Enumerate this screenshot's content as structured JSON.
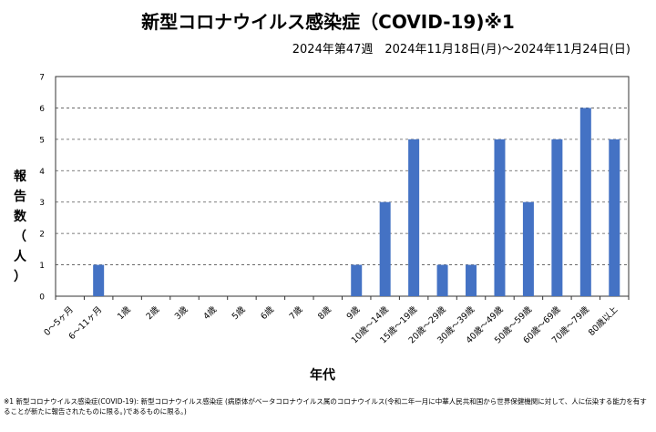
{
  "title": "新型コロナウイルス感染症（COVID-19)※1",
  "subtitle": "2024年第47週　2024年11月18日(月)～2024年11月24日(日)",
  "footnote": "※1 新型コロナウイルス感染症(COVID-19): 新型コロナウイルス感染症 (病原体がベータコロナウイルス属のコロナウイルス(令和二年一月に中華人民共和国から世界保健機関に対して、人に伝染する能力を有することが新たに報告されたものに限る。)であるものに限る。)",
  "chart_data": {
    "type": "bar",
    "title": "新型コロナウイルス感染症（COVID-19)※1",
    "xlabel": "年代",
    "ylabel": "報告数（人）",
    "ylim": [
      0,
      7
    ],
    "yticks": [
      "0",
      "1",
      "2",
      "3",
      "4",
      "5",
      "6",
      "7"
    ],
    "grid": true,
    "bar_color": "#4472C4",
    "categories": [
      "0～5ヶ月",
      "6～11ヶ月",
      "1歳",
      "2歳",
      "3歳",
      "4歳",
      "5歳",
      "6歳",
      "7歳",
      "8歳",
      "9歳",
      "10歳～14歳",
      "15歳～19歳",
      "20歳～29歳",
      "30歳～39歳",
      "40歳～49歳",
      "50歳～59歳",
      "60歳～69歳",
      "70歳～79歳",
      "80歳以上"
    ],
    "values": [
      0,
      1,
      0,
      0,
      0,
      0,
      0,
      0,
      0,
      0,
      1,
      3,
      5,
      1,
      1,
      5,
      3,
      5,
      6,
      5
    ]
  }
}
